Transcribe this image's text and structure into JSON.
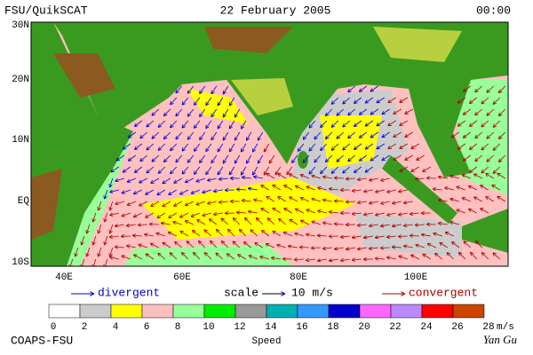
{
  "header": {
    "title": "FSU/QuikSCAT",
    "date": "22 February 2005",
    "time": "00:00"
  },
  "map": {
    "lat_labels": [
      "30N",
      "20N",
      "10N",
      "EQ",
      "10S"
    ],
    "lon_labels": [
      "40E",
      "60E",
      "80E",
      "100E"
    ]
  },
  "legend": {
    "divergent": "divergent",
    "scale": "scale",
    "scale_value": "10 m/s",
    "convergent": "convergent"
  },
  "colorbar": {
    "labels": [
      "0",
      "2",
      "4",
      "6",
      "8",
      "10",
      "12",
      "14",
      "16",
      "18",
      "20",
      "22",
      "24",
      "26",
      "28"
    ],
    "unit": "m/s",
    "title": "Speed",
    "colors": [
      "#ffffff",
      "#cccccc",
      "#ffff00",
      "#ffc0c0",
      "#99ff99",
      "#00ee00",
      "#999999",
      "#00b0b0",
      "#3399ff",
      "#0000cc",
      "#ff66ff",
      "#bb88ff",
      "#ff0000",
      "#cc4400"
    ]
  },
  "footer": {
    "left": "COAPS-FSU",
    "right": "Yan Gu"
  }
}
